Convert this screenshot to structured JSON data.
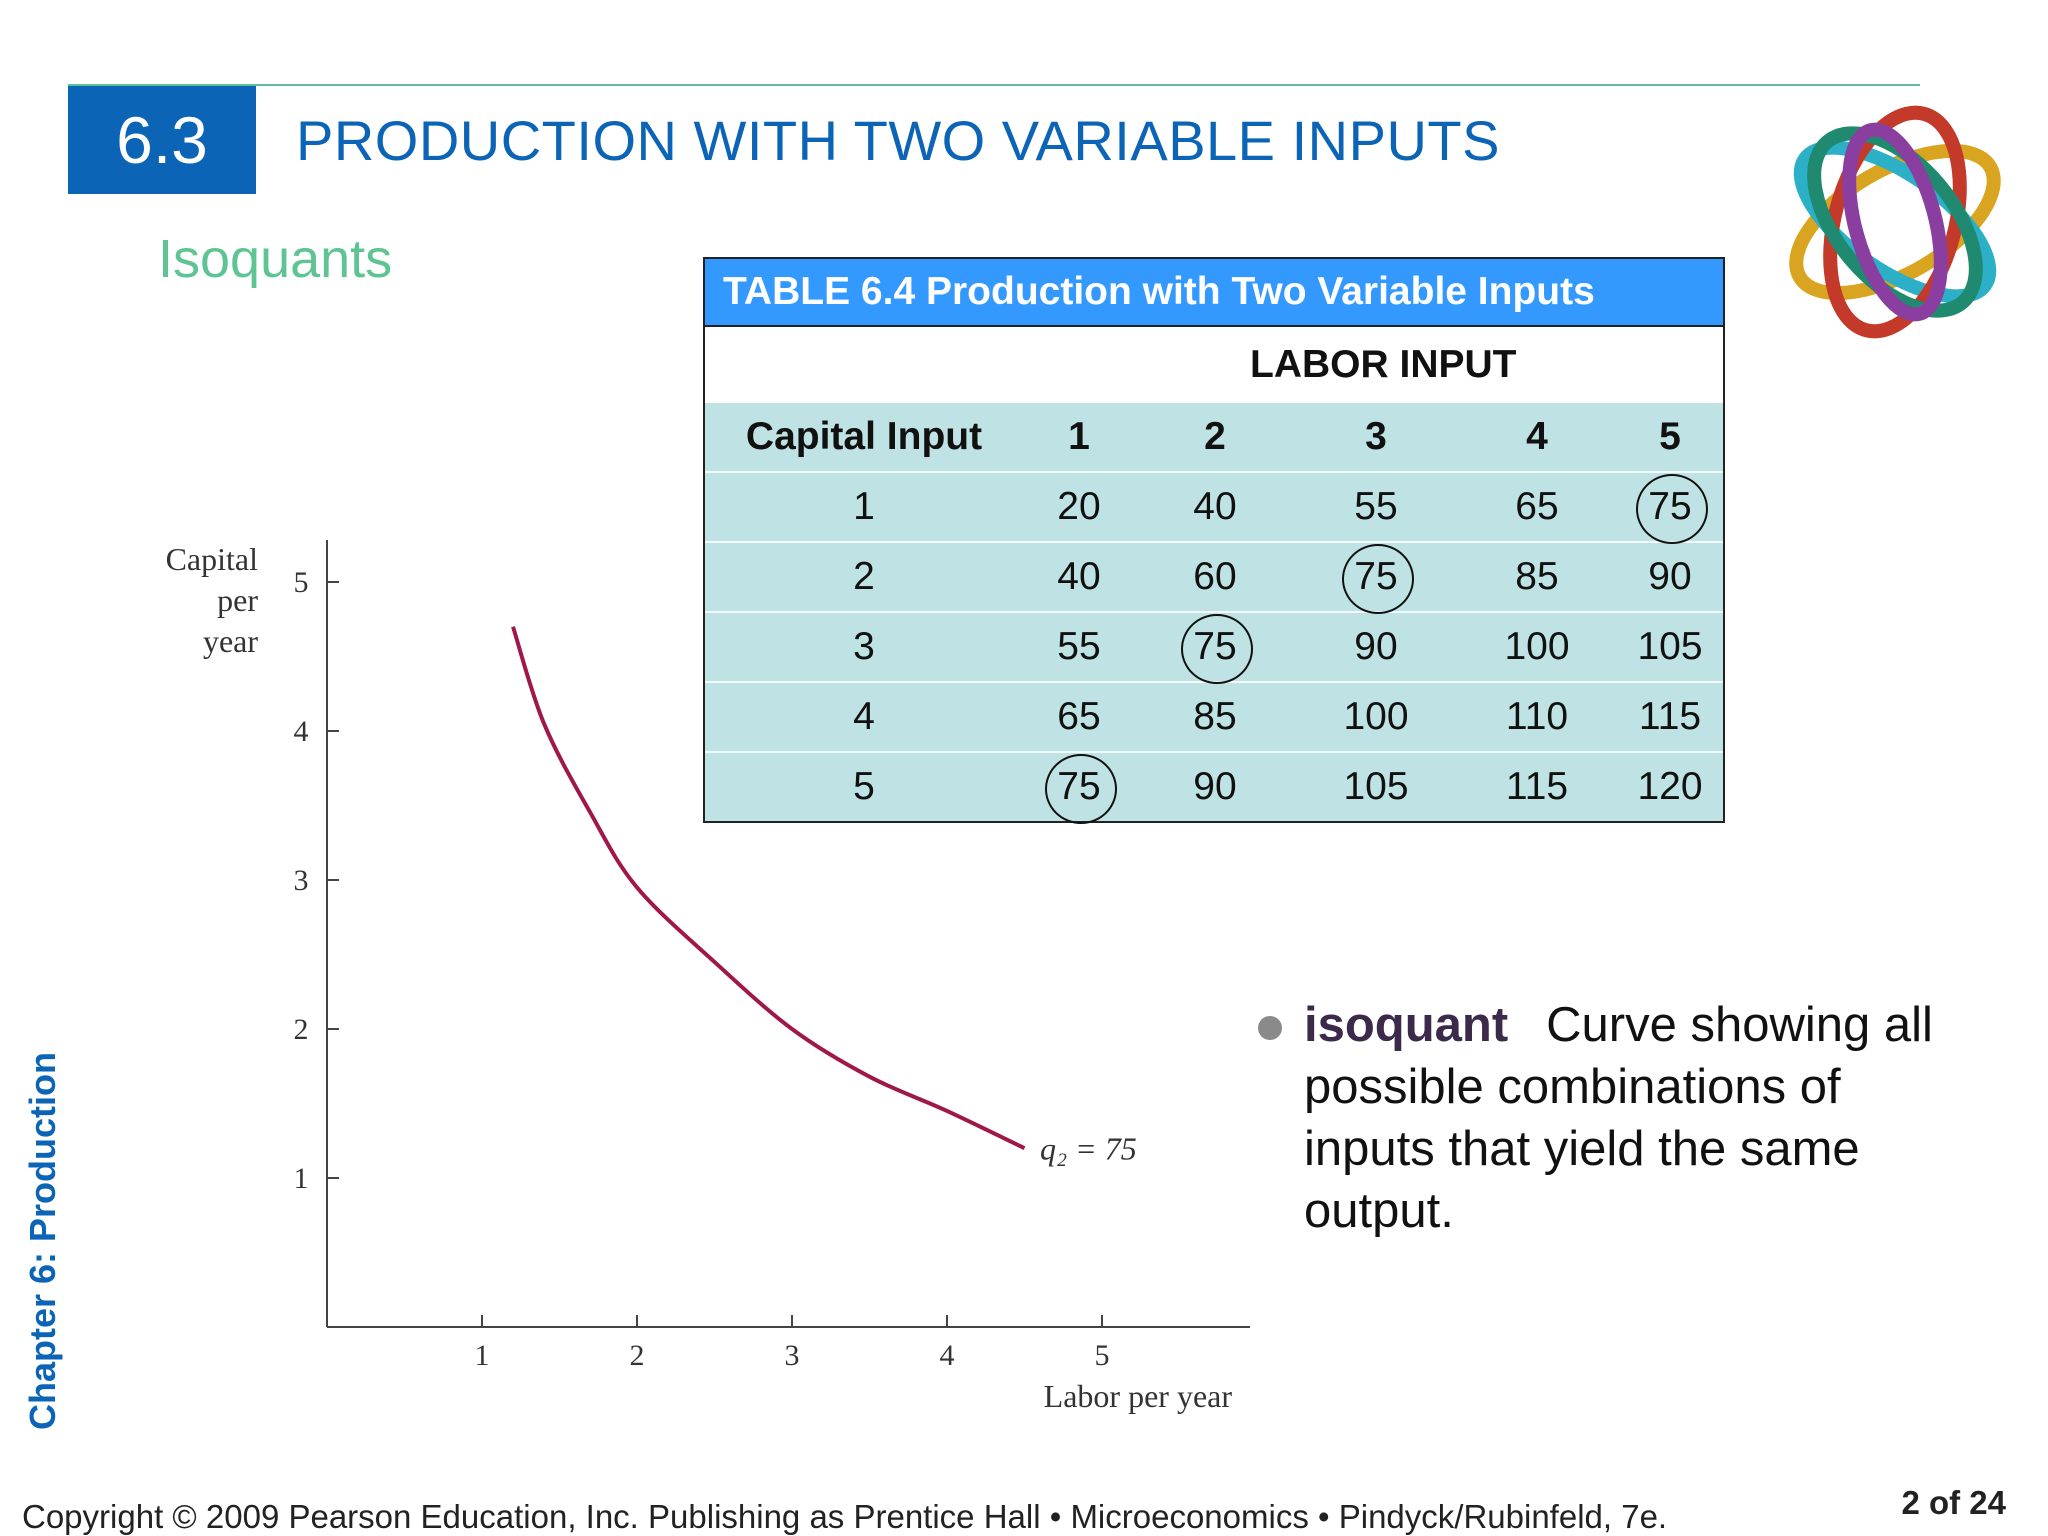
{
  "header": {
    "section_number": "6.3",
    "title": "PRODUCTION WITH TWO VARIABLE INPUTS",
    "subtitle": "Isoquants"
  },
  "colors": {
    "brand_blue": "#0b64b5",
    "subtitle_green": "#5ec494",
    "table_header_blue": "#3399ff",
    "table_body": "#bfe3e4",
    "curve": "#a0174a"
  },
  "table": {
    "caption": "TABLE 6.4  Production with Two Variable Inputs",
    "column_group": "LABOR INPUT",
    "row_header": "Capital Input",
    "columns": [
      "1",
      "2",
      "3",
      "4",
      "5"
    ],
    "rows": [
      {
        "capital": "1",
        "values": [
          "20",
          "40",
          "55",
          "65",
          "75"
        ],
        "circled_index": 4
      },
      {
        "capital": "2",
        "values": [
          "40",
          "60",
          "75",
          "85",
          "90"
        ],
        "circled_index": 2
      },
      {
        "capital": "3",
        "values": [
          "55",
          "75",
          "90",
          "100",
          "105"
        ],
        "circled_index": 1
      },
      {
        "capital": "4",
        "values": [
          "65",
          "85",
          "100",
          "110",
          "115"
        ],
        "circled_index": -1
      },
      {
        "capital": "5",
        "values": [
          "75",
          "90",
          "105",
          "115",
          "120"
        ],
        "circled_index": 0
      }
    ]
  },
  "chart_data": {
    "type": "line",
    "title": "",
    "xlabel": "Labor per year",
    "ylabel": "Capital per year",
    "xlim": [
      0,
      6
    ],
    "ylim": [
      0,
      5.4
    ],
    "xticks": [
      "1",
      "2",
      "3",
      "4",
      "5"
    ],
    "yticks": [
      "1",
      "2",
      "3",
      "4",
      "5"
    ],
    "grid": false,
    "series": [
      {
        "name": "q₂ = 75",
        "x": [
          1.2,
          1.4,
          1.7,
          2.0,
          2.5,
          3.0,
          3.5,
          4.0,
          4.5
        ],
        "y": [
          4.7,
          4.05,
          3.45,
          2.95,
          2.45,
          2.0,
          1.68,
          1.45,
          1.2
        ]
      }
    ],
    "annotations": [
      {
        "text": "q₂ = 75",
        "x": 4.6,
        "y": 1.15
      }
    ]
  },
  "definition": {
    "term": "isoquant",
    "text": "Curve showing all possible combinations of inputs that yield the same output."
  },
  "sidebar": {
    "chapter": "Chapter 6:  Production"
  },
  "footer": {
    "copyright": "Copyright © 2009 Pearson Education, Inc. Publishing as Prentice Hall  •  Microeconomics  •  Pindyck/Rubinfeld, 7e.",
    "page": "2 of 24"
  }
}
